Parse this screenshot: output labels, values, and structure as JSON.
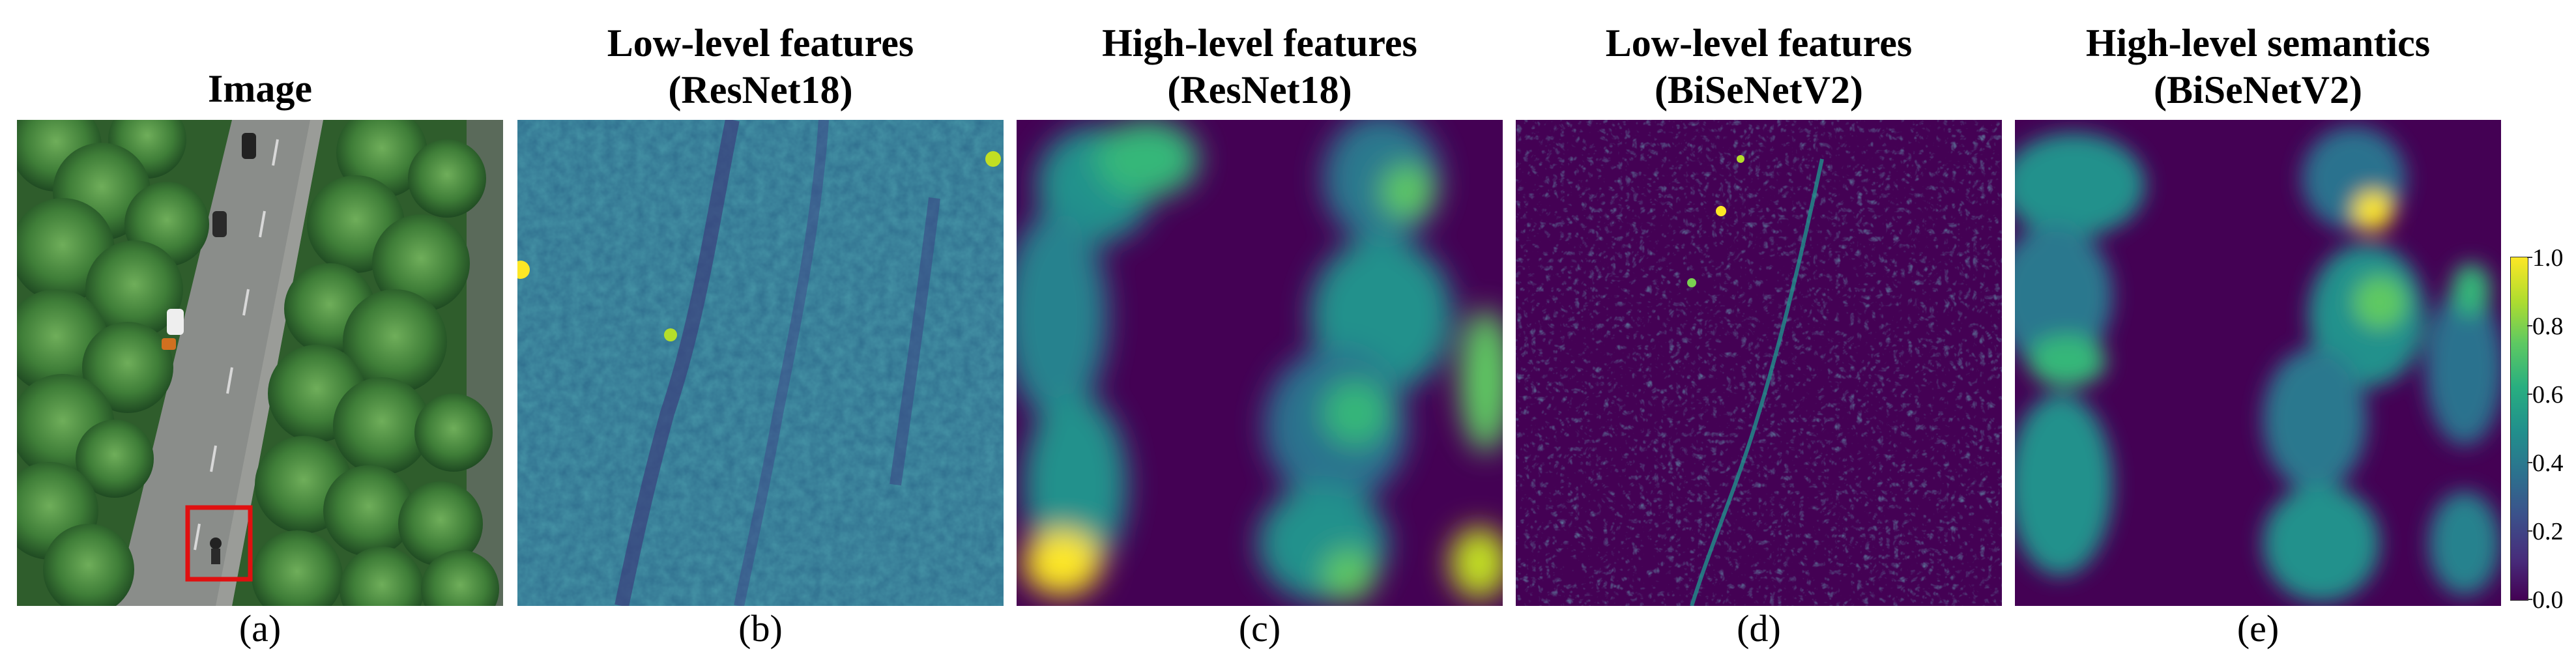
{
  "panels": [
    {
      "title1": "Image",
      "title2": "",
      "caption": "(a)"
    },
    {
      "title1": "Low-level features",
      "title2": "(ResNet18)",
      "caption": "(b)"
    },
    {
      "title1": "High-level features",
      "title2": "(ResNet18)",
      "caption": "(c)"
    },
    {
      "title1": "Low-level features",
      "title2": "(BiSeNetV2)",
      "caption": "(d)"
    },
    {
      "title1": "High-level semantics",
      "title2": "(BiSeNetV2)",
      "caption": "(e)"
    }
  ],
  "colorbar": {
    "ticks": [
      "1.0",
      "0.8",
      "0.6",
      "0.4",
      "0.2",
      "0.0"
    ],
    "colormap": [
      "#440154",
      "#3b528b",
      "#21918c",
      "#5ec962",
      "#fde725"
    ]
  },
  "highlight_box_color": "#e01010"
}
